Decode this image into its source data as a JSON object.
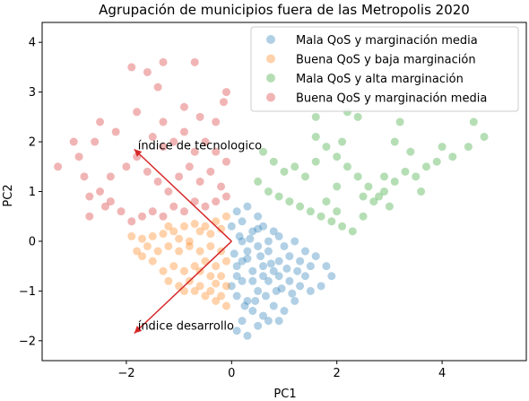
{
  "chart_data": {
    "type": "scatter",
    "title": "Agrupación de municipios fuera de las Metropolis 2020",
    "xlabel": "PC1",
    "ylabel": "PC2",
    "xlim": [
      -3.6,
      5.6
    ],
    "ylim": [
      -2.4,
      4.4
    ],
    "xticks": [
      -2,
      0,
      2,
      4
    ],
    "yticks": [
      -2,
      -1,
      0,
      1,
      2,
      3,
      4
    ],
    "grid": false,
    "legend_position": "top-right",
    "series": [
      {
        "name": "Mala QoS y marginación media",
        "color": "#1f77b4",
        "points": [
          [
            0.3,
            0.7
          ],
          [
            0.2,
            0.4
          ],
          [
            0.1,
            0.6
          ],
          [
            0.5,
            0.5
          ],
          [
            0.4,
            0.2
          ],
          [
            0.2,
            0.0
          ],
          [
            0.6,
            0.3
          ],
          [
            0.8,
            0.2
          ],
          [
            0.9,
            0.1
          ],
          [
            1.0,
            -0.1
          ],
          [
            1.2,
            0.0
          ],
          [
            1.4,
            -0.2
          ],
          [
            1.6,
            -0.3
          ],
          [
            1.8,
            -0.5
          ],
          [
            1.9,
            -0.7
          ],
          [
            1.5,
            -0.5
          ],
          [
            1.3,
            -0.4
          ],
          [
            1.1,
            -0.3
          ],
          [
            0.9,
            -0.4
          ],
          [
            0.7,
            -0.2
          ],
          [
            0.5,
            -0.1
          ],
          [
            0.3,
            -0.2
          ],
          [
            0.2,
            -0.4
          ],
          [
            0.1,
            -0.7
          ],
          [
            0.0,
            -0.9
          ],
          [
            0.1,
            -1.1
          ],
          [
            0.3,
            -1.2
          ],
          [
            0.5,
            -1.0
          ],
          [
            0.7,
            -0.8
          ],
          [
            0.9,
            -0.7
          ],
          [
            1.1,
            -0.8
          ],
          [
            1.3,
            -0.9
          ],
          [
            1.5,
            -1.0
          ],
          [
            1.2,
            -1.2
          ],
          [
            1.0,
            -1.4
          ],
          [
            0.8,
            -1.3
          ],
          [
            0.6,
            -1.5
          ],
          [
            0.4,
            -1.4
          ],
          [
            0.2,
            -1.6
          ],
          [
            0.1,
            -1.8
          ],
          [
            0.3,
            -1.9
          ],
          [
            0.5,
            -1.7
          ],
          [
            0.7,
            -1.6
          ],
          [
            0.9,
            -1.6
          ],
          [
            0.4,
            -0.6
          ],
          [
            0.6,
            -0.5
          ],
          [
            0.8,
            -0.6
          ],
          [
            0.2,
            -0.8
          ],
          [
            1.7,
            -0.9
          ],
          [
            1.4,
            -0.7
          ],
          [
            0.0,
            0.3
          ],
          [
            0.15,
            0.1
          ],
          [
            0.35,
            0.05
          ],
          [
            0.55,
            -0.3
          ],
          [
            0.75,
            -0.45
          ],
          [
            0.95,
            -0.95
          ],
          [
            1.15,
            -1.05
          ],
          [
            0.45,
            -1.2
          ],
          [
            0.25,
            -1.3
          ],
          [
            0.65,
            -1.1
          ],
          [
            0.85,
            -1.0
          ],
          [
            1.05,
            -0.55
          ],
          [
            1.25,
            -0.6
          ],
          [
            0.05,
            -0.25
          ],
          [
            0.3,
            -0.35
          ],
          [
            0.1,
            -0.5
          ],
          [
            0.5,
            0.25
          ],
          [
            0.7,
            0.0
          ],
          [
            0.4,
            -0.8
          ],
          [
            0.6,
            -0.7
          ]
        ]
      },
      {
        "name": "Buena QoS y baja marginación",
        "color": "#ff7f0e",
        "points": [
          [
            -0.1,
            0.5
          ],
          [
            -0.3,
            0.4
          ],
          [
            -0.5,
            0.3
          ],
          [
            -0.7,
            0.35
          ],
          [
            -0.9,
            0.3
          ],
          [
            -1.1,
            0.2
          ],
          [
            -1.3,
            0.15
          ],
          [
            -1.5,
            0.1
          ],
          [
            -1.7,
            0.05
          ],
          [
            -1.9,
            0.1
          ],
          [
            -1.6,
            -0.1
          ],
          [
            -1.4,
            -0.2
          ],
          [
            -1.2,
            -0.1
          ],
          [
            -1.0,
            -0.2
          ],
          [
            -0.8,
            -0.1
          ],
          [
            -0.6,
            -0.2
          ],
          [
            -0.4,
            -0.1
          ],
          [
            -0.2,
            -0.2
          ],
          [
            -0.1,
            -0.4
          ],
          [
            -0.3,
            -0.5
          ],
          [
            -0.5,
            -0.4
          ],
          [
            -0.7,
            -0.5
          ],
          [
            -0.9,
            -0.6
          ],
          [
            -1.1,
            -0.5
          ],
          [
            -1.3,
            -0.6
          ],
          [
            -1.5,
            -0.4
          ],
          [
            -1.2,
            -0.8
          ],
          [
            -1.0,
            -0.9
          ],
          [
            -0.8,
            -0.8
          ],
          [
            -0.6,
            -0.9
          ],
          [
            -0.4,
            -1.0
          ],
          [
            -0.2,
            -1.1
          ],
          [
            -0.1,
            -1.3
          ],
          [
            -0.3,
            -1.2
          ],
          [
            -0.5,
            -1.1
          ],
          [
            -0.7,
            -1.0
          ],
          [
            -0.9,
            -1.0
          ],
          [
            -0.2,
            -0.7
          ],
          [
            -0.4,
            -0.7
          ],
          [
            -0.6,
            -0.6
          ],
          [
            -0.8,
            0.0
          ],
          [
            -1.0,
            0.05
          ],
          [
            -1.2,
            0.3
          ],
          [
            -0.6,
            0.2
          ],
          [
            -0.4,
            0.15
          ],
          [
            -0.2,
            0.25
          ],
          [
            -1.8,
            -0.2
          ],
          [
            -1.7,
            -0.3
          ],
          [
            -0.1,
            -0.9
          ],
          [
            -0.3,
            -0.85
          ]
        ]
      },
      {
        "name": "Mala QoS y alta marginación",
        "color": "#2ca02c",
        "points": [
          [
            0.5,
            1.2
          ],
          [
            0.7,
            1.0
          ],
          [
            0.9,
            0.9
          ],
          [
            1.1,
            0.8
          ],
          [
            1.3,
            0.7
          ],
          [
            1.5,
            0.6
          ],
          [
            1.7,
            0.5
          ],
          [
            1.9,
            0.4
          ],
          [
            2.1,
            0.3
          ],
          [
            2.3,
            0.2
          ],
          [
            2.5,
            0.5
          ],
          [
            2.7,
            0.8
          ],
          [
            2.9,
            1.0
          ],
          [
            3.1,
            1.2
          ],
          [
            3.3,
            1.4
          ],
          [
            3.5,
            1.3
          ],
          [
            3.7,
            1.5
          ],
          [
            3.9,
            1.6
          ],
          [
            4.2,
            1.7
          ],
          [
            4.5,
            1.9
          ],
          [
            4.6,
            2.4
          ],
          [
            4.8,
            2.1
          ],
          [
            1.6,
            1.6
          ],
          [
            1.8,
            1.9
          ],
          [
            2.0,
            1.7
          ],
          [
            2.2,
            1.5
          ],
          [
            2.4,
            1.3
          ],
          [
            2.6,
            1.1
          ],
          [
            2.8,
            0.9
          ],
          [
            3.0,
            0.7
          ],
          [
            1.2,
            1.5
          ],
          [
            1.4,
            1.3
          ],
          [
            1.0,
            1.4
          ],
          [
            0.8,
            1.6
          ],
          [
            0.6,
            1.8
          ],
          [
            1.6,
            2.1
          ],
          [
            2.1,
            2.0
          ],
          [
            2.4,
            2.5
          ],
          [
            1.6,
            2.5
          ],
          [
            2.2,
            2.6
          ],
          [
            3.1,
            2.0
          ],
          [
            3.4,
            1.8
          ],
          [
            3.2,
            2.4
          ],
          [
            2.0,
            1.1
          ],
          [
            2.5,
            0.9
          ],
          [
            2.9,
            1.3
          ],
          [
            3.6,
            1.0
          ],
          [
            4.0,
            1.9
          ],
          [
            2.0,
            0.6
          ],
          [
            1.8,
            0.8
          ]
        ]
      },
      {
        "name": "Buena QoS y marginación media",
        "color": "#d62728",
        "points": [
          [
            -0.1,
            0.9
          ],
          [
            -0.3,
            0.8
          ],
          [
            -0.5,
            0.7
          ],
          [
            -0.7,
            0.8
          ],
          [
            -0.9,
            0.6
          ],
          [
            -1.1,
            0.7
          ],
          [
            -1.3,
            0.5
          ],
          [
            -1.5,
            0.6
          ],
          [
            -1.7,
            0.5
          ],
          [
            -1.9,
            0.4
          ],
          [
            -2.1,
            0.6
          ],
          [
            -2.3,
            0.8
          ],
          [
            -2.5,
            1.0
          ],
          [
            -2.7,
            0.9
          ],
          [
            -2.3,
            1.3
          ],
          [
            -2.0,
            1.5
          ],
          [
            -1.8,
            1.7
          ],
          [
            -1.6,
            1.4
          ],
          [
            -1.4,
            1.2
          ],
          [
            -1.2,
            1.0
          ],
          [
            -1.0,
            1.3
          ],
          [
            -0.8,
            1.5
          ],
          [
            -0.6,
            1.2
          ],
          [
            -0.4,
            1.4
          ],
          [
            -0.2,
            1.1
          ],
          [
            -0.1,
            1.6
          ],
          [
            -0.3,
            1.8
          ],
          [
            -0.5,
            2.0
          ],
          [
            -0.7,
            1.8
          ],
          [
            -0.9,
            2.2
          ],
          [
            -1.1,
            2.0
          ],
          [
            -1.3,
            1.9
          ],
          [
            -1.5,
            2.1
          ],
          [
            -2.5,
            2.4
          ],
          [
            -2.6,
            2.0
          ],
          [
            -2.9,
            1.7
          ],
          [
            -3.0,
            2.0
          ],
          [
            -3.3,
            1.5
          ],
          [
            -2.8,
            1.3
          ],
          [
            -1.9,
            3.5
          ],
          [
            -1.6,
            3.4
          ],
          [
            -1.3,
            3.6
          ],
          [
            -1.4,
            3.1
          ],
          [
            -0.9,
            2.7
          ],
          [
            -0.7,
            3.6
          ],
          [
            -0.1,
            3.0
          ],
          [
            -0.15,
            2.8
          ],
          [
            -0.6,
            2.5
          ],
          [
            -1.8,
            2.6
          ],
          [
            -2.2,
            2.2
          ],
          [
            -1.3,
            2.4
          ],
          [
            -0.3,
            2.4
          ],
          [
            -2.7,
            0.5
          ],
          [
            -2.4,
            0.7
          ]
        ]
      }
    ],
    "vectors": [
      {
        "label": "índice de tecnologico",
        "x": -1.85,
        "y": 1.85,
        "color": "#d62728"
      },
      {
        "label": "índice desarrollo",
        "x": -1.85,
        "y": -1.85,
        "color": "#d62728"
      }
    ]
  }
}
